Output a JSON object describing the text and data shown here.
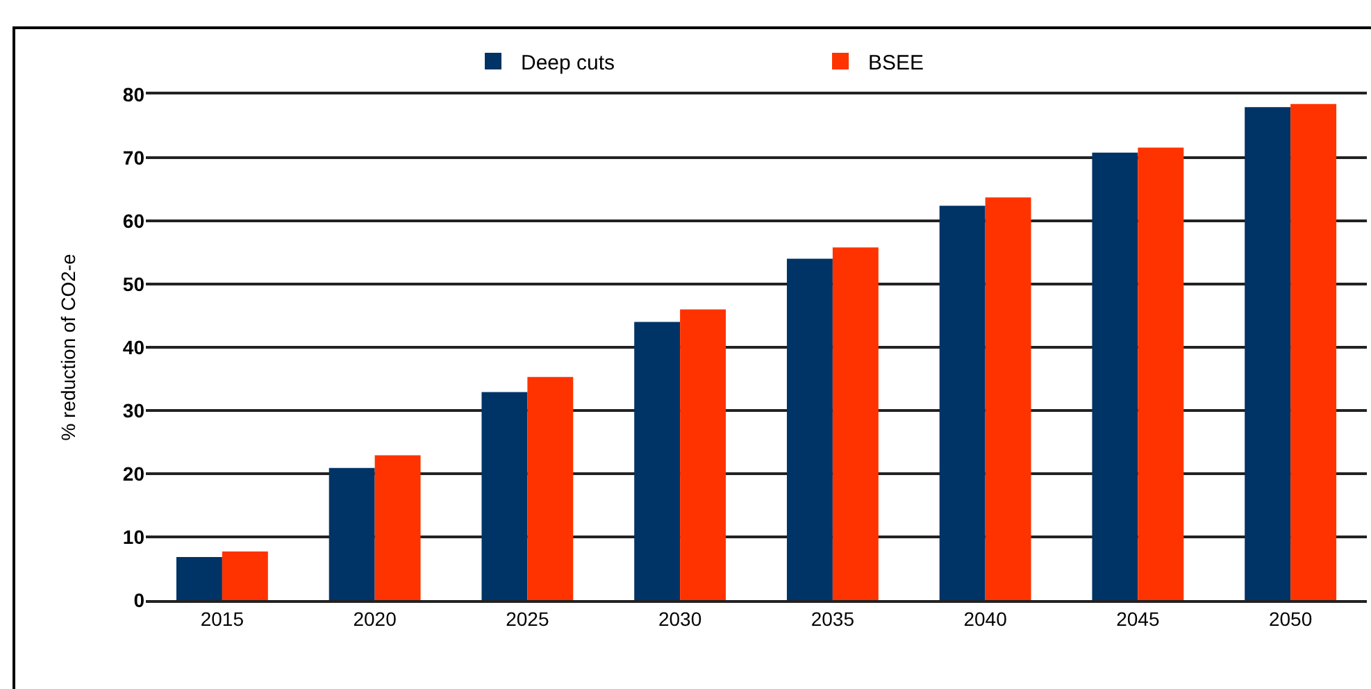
{
  "chart_data": {
    "type": "bar",
    "ylabel": "% reduction of CO2-e",
    "categories": [
      "2015",
      "2020",
      "2025",
      "2030",
      "2035",
      "2040",
      "2045",
      "2050"
    ],
    "series": [
      {
        "name": "Deep cuts",
        "color": "#003366",
        "values": [
          6.8,
          20.9,
          32.9,
          44.0,
          54.0,
          62.4,
          70.8,
          78.0
        ]
      },
      {
        "name": "BSEE",
        "color": "#ff3300",
        "values": [
          7.7,
          22.9,
          35.3,
          46.0,
          55.8,
          63.7,
          71.6,
          78.5
        ]
      }
    ],
    "ylim": [
      0,
      80
    ],
    "yticks": [
      0,
      10,
      20,
      30,
      40,
      50,
      60,
      70,
      80
    ],
    "grid": "y",
    "legend": "top"
  }
}
